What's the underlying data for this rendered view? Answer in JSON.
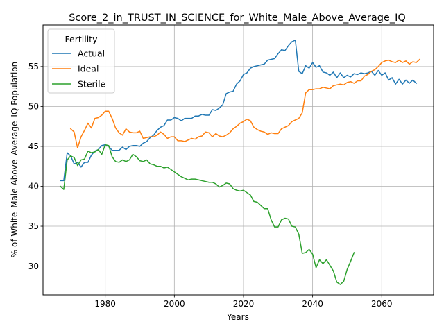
{
  "chart_data": {
    "type": "line",
    "title": "Score_2_in_TRUST_IN_SCIENCE_for_White_Male_Above_Average_IQ",
    "xlabel": "Years",
    "ylabel": "% of White_Male Above_Average_IQ Population",
    "xlim": [
      1962,
      2075
    ],
    "ylim": [
      26.4,
      60.2
    ],
    "xticks": [
      1980,
      2000,
      2020,
      2040,
      2060
    ],
    "yticks": [
      30,
      35,
      40,
      45,
      50,
      55
    ],
    "grid": true,
    "legend": {
      "title": "Fertility",
      "placement": "top-left"
    },
    "series": [
      {
        "name": "Actual",
        "color": "#1f77b4",
        "points": [
          [
            1967,
            40.7
          ],
          [
            1968,
            40.7
          ],
          [
            1969,
            44.2
          ],
          [
            1970,
            43.8
          ],
          [
            1971,
            42.8
          ],
          [
            1972,
            43.0
          ],
          [
            1973,
            42.4
          ],
          [
            1974,
            43.0
          ],
          [
            1975,
            43.0
          ],
          [
            1976,
            43.9
          ],
          [
            1977,
            44.4
          ],
          [
            1978,
            44.6
          ],
          [
            1979,
            45.1
          ],
          [
            1980,
            45.2
          ],
          [
            1981,
            45.0
          ],
          [
            1982,
            44.5
          ],
          [
            1983,
            44.5
          ],
          [
            1984,
            44.5
          ],
          [
            1985,
            44.9
          ],
          [
            1986,
            44.6
          ],
          [
            1987,
            45.0
          ],
          [
            1988,
            45.1
          ],
          [
            1989,
            45.1
          ],
          [
            1990,
            45.0
          ],
          [
            1991,
            45.4
          ],
          [
            1992,
            45.6
          ],
          [
            1993,
            46.1
          ],
          [
            1994,
            46.4
          ],
          [
            1995,
            47.0
          ],
          [
            1996,
            47.4
          ],
          [
            1997,
            47.6
          ],
          [
            1998,
            48.3
          ],
          [
            1999,
            48.3
          ],
          [
            2000,
            48.6
          ],
          [
            2001,
            48.5
          ],
          [
            2002,
            48.2
          ],
          [
            2003,
            48.5
          ],
          [
            2004,
            48.5
          ],
          [
            2005,
            48.5
          ],
          [
            2006,
            48.8
          ],
          [
            2007,
            48.8
          ],
          [
            2008,
            49.0
          ],
          [
            2009,
            48.9
          ],
          [
            2010,
            48.9
          ],
          [
            2011,
            49.6
          ],
          [
            2012,
            49.5
          ],
          [
            2013,
            49.8
          ],
          [
            2014,
            50.2
          ],
          [
            2015,
            51.6
          ],
          [
            2016,
            51.8
          ],
          [
            2017,
            51.9
          ],
          [
            2018,
            52.8
          ],
          [
            2019,
            53.2
          ],
          [
            2020,
            54.0
          ],
          [
            2021,
            54.2
          ],
          [
            2022,
            54.8
          ],
          [
            2023,
            55.0
          ],
          [
            2024,
            55.1
          ],
          [
            2025,
            55.2
          ],
          [
            2026,
            55.3
          ],
          [
            2027,
            55.8
          ],
          [
            2028,
            55.9
          ],
          [
            2029,
            56.0
          ],
          [
            2030,
            56.6
          ],
          [
            2031,
            57.1
          ],
          [
            2032,
            57.0
          ],
          [
            2033,
            57.6
          ],
          [
            2034,
            58.1
          ],
          [
            2035,
            58.3
          ],
          [
            2036,
            54.4
          ],
          [
            2037,
            54.1
          ],
          [
            2038,
            55.1
          ],
          [
            2039,
            54.8
          ],
          [
            2040,
            55.5
          ],
          [
            2041,
            54.9
          ],
          [
            2042,
            55.1
          ],
          [
            2043,
            54.3
          ],
          [
            2044,
            54.2
          ],
          [
            2045,
            53.9
          ],
          [
            2046,
            54.3
          ],
          [
            2047,
            53.6
          ],
          [
            2048,
            54.2
          ],
          [
            2049,
            53.6
          ],
          [
            2050,
            53.9
          ],
          [
            2051,
            53.7
          ],
          [
            2052,
            54.1
          ],
          [
            2053,
            54.0
          ],
          [
            2054,
            54.2
          ],
          [
            2055,
            54.1
          ],
          [
            2056,
            54.2
          ],
          [
            2057,
            54.4
          ],
          [
            2058,
            53.9
          ],
          [
            2059,
            54.5
          ],
          [
            2060,
            53.9
          ],
          [
            2061,
            54.2
          ],
          [
            2062,
            53.3
          ],
          [
            2063,
            53.6
          ],
          [
            2064,
            52.8
          ],
          [
            2065,
            53.4
          ],
          [
            2066,
            52.8
          ],
          [
            2067,
            53.3
          ],
          [
            2068,
            52.9
          ],
          [
            2069,
            53.3
          ],
          [
            2070,
            52.9
          ]
        ]
      },
      {
        "name": "Ideal",
        "color": "#ff7f0e",
        "points": [
          [
            1970,
            47.2
          ],
          [
            1971,
            46.8
          ],
          [
            1972,
            44.8
          ],
          [
            1973,
            46.2
          ],
          [
            1974,
            47.0
          ],
          [
            1975,
            47.9
          ],
          [
            1976,
            47.3
          ],
          [
            1977,
            48.5
          ],
          [
            1978,
            48.6
          ],
          [
            1979,
            48.9
          ],
          [
            1980,
            49.4
          ],
          [
            1981,
            49.4
          ],
          [
            1982,
            48.5
          ],
          [
            1983,
            47.3
          ],
          [
            1984,
            46.7
          ],
          [
            1985,
            46.4
          ],
          [
            1986,
            47.2
          ],
          [
            1987,
            46.8
          ],
          [
            1988,
            46.7
          ],
          [
            1989,
            46.7
          ],
          [
            1990,
            46.9
          ],
          [
            1991,
            46.0
          ],
          [
            1992,
            46.1
          ],
          [
            1993,
            46.2
          ],
          [
            1994,
            46.2
          ],
          [
            1995,
            46.4
          ],
          [
            1996,
            46.8
          ],
          [
            1997,
            46.5
          ],
          [
            1998,
            46.0
          ],
          [
            1999,
            46.2
          ],
          [
            2000,
            46.2
          ],
          [
            2001,
            45.7
          ],
          [
            2002,
            45.7
          ],
          [
            2003,
            45.6
          ],
          [
            2004,
            45.8
          ],
          [
            2005,
            46.0
          ],
          [
            2006,
            45.9
          ],
          [
            2007,
            46.2
          ],
          [
            2008,
            46.3
          ],
          [
            2009,
            46.8
          ],
          [
            2010,
            46.7
          ],
          [
            2011,
            46.2
          ],
          [
            2012,
            46.6
          ],
          [
            2013,
            46.3
          ],
          [
            2014,
            46.2
          ],
          [
            2015,
            46.4
          ],
          [
            2016,
            46.7
          ],
          [
            2017,
            47.2
          ],
          [
            2018,
            47.5
          ],
          [
            2019,
            47.9
          ],
          [
            2020,
            48.1
          ],
          [
            2021,
            48.4
          ],
          [
            2022,
            48.2
          ],
          [
            2023,
            47.4
          ],
          [
            2024,
            47.1
          ],
          [
            2025,
            46.9
          ],
          [
            2026,
            46.8
          ],
          [
            2027,
            46.5
          ],
          [
            2028,
            46.7
          ],
          [
            2029,
            46.6
          ],
          [
            2030,
            46.6
          ],
          [
            2031,
            47.2
          ],
          [
            2032,
            47.4
          ],
          [
            2033,
            47.6
          ],
          [
            2034,
            48.1
          ],
          [
            2035,
            48.3
          ],
          [
            2036,
            48.5
          ],
          [
            2037,
            49.2
          ],
          [
            2038,
            51.7
          ],
          [
            2039,
            52.1
          ],
          [
            2040,
            52.1
          ],
          [
            2041,
            52.2
          ],
          [
            2042,
            52.2
          ],
          [
            2043,
            52.4
          ],
          [
            2044,
            52.3
          ],
          [
            2045,
            52.2
          ],
          [
            2046,
            52.6
          ],
          [
            2047,
            52.7
          ],
          [
            2048,
            52.8
          ],
          [
            2049,
            52.7
          ],
          [
            2050,
            53.0
          ],
          [
            2051,
            53.1
          ],
          [
            2052,
            52.9
          ],
          [
            2053,
            53.2
          ],
          [
            2054,
            53.2
          ],
          [
            2055,
            53.8
          ],
          [
            2056,
            54.0
          ],
          [
            2057,
            54.4
          ],
          [
            2058,
            54.6
          ],
          [
            2059,
            55.0
          ],
          [
            2060,
            55.5
          ],
          [
            2061,
            55.7
          ],
          [
            2062,
            55.8
          ],
          [
            2063,
            55.6
          ],
          [
            2064,
            55.5
          ],
          [
            2065,
            55.8
          ],
          [
            2066,
            55.5
          ],
          [
            2067,
            55.7
          ],
          [
            2068,
            55.3
          ],
          [
            2069,
            55.6
          ],
          [
            2070,
            55.5
          ],
          [
            2071,
            55.9
          ]
        ]
      },
      {
        "name": "Sterile",
        "color": "#2ca02c",
        "points": [
          [
            1967,
            40.0
          ],
          [
            1968,
            39.6
          ],
          [
            1969,
            43.3
          ],
          [
            1970,
            43.8
          ],
          [
            1971,
            43.6
          ],
          [
            1972,
            42.6
          ],
          [
            1973,
            43.3
          ],
          [
            1974,
            43.4
          ],
          [
            1975,
            44.4
          ],
          [
            1976,
            44.2
          ],
          [
            1977,
            44.3
          ],
          [
            1978,
            44.6
          ],
          [
            1979,
            44.0
          ],
          [
            1980,
            45.2
          ],
          [
            1981,
            45.1
          ],
          [
            1982,
            43.7
          ],
          [
            1983,
            43.1
          ],
          [
            1984,
            43.0
          ],
          [
            1985,
            43.3
          ],
          [
            1986,
            43.1
          ],
          [
            1987,
            43.3
          ],
          [
            1988,
            44.0
          ],
          [
            1989,
            43.7
          ],
          [
            1990,
            43.2
          ],
          [
            1991,
            43.1
          ],
          [
            1992,
            43.3
          ],
          [
            1993,
            42.8
          ],
          [
            1994,
            42.7
          ],
          [
            1995,
            42.5
          ],
          [
            1996,
            42.5
          ],
          [
            1997,
            42.3
          ],
          [
            1998,
            42.4
          ],
          [
            1999,
            42.1
          ],
          [
            2000,
            41.8
          ],
          [
            2001,
            41.5
          ],
          [
            2002,
            41.2
          ],
          [
            2003,
            41.0
          ],
          [
            2004,
            40.8
          ],
          [
            2005,
            40.9
          ],
          [
            2006,
            40.9
          ],
          [
            2007,
            40.8
          ],
          [
            2008,
            40.7
          ],
          [
            2009,
            40.6
          ],
          [
            2010,
            40.5
          ],
          [
            2011,
            40.5
          ],
          [
            2012,
            40.3
          ],
          [
            2013,
            39.9
          ],
          [
            2014,
            40.1
          ],
          [
            2015,
            40.4
          ],
          [
            2016,
            40.3
          ],
          [
            2017,
            39.7
          ],
          [
            2018,
            39.5
          ],
          [
            2019,
            39.4
          ],
          [
            2020,
            39.5
          ],
          [
            2021,
            39.2
          ],
          [
            2022,
            38.9
          ],
          [
            2023,
            38.1
          ],
          [
            2024,
            38.0
          ],
          [
            2025,
            37.6
          ],
          [
            2026,
            37.2
          ],
          [
            2027,
            37.2
          ],
          [
            2028,
            35.8
          ],
          [
            2029,
            34.9
          ],
          [
            2030,
            34.9
          ],
          [
            2031,
            35.8
          ],
          [
            2032,
            36.0
          ],
          [
            2033,
            35.9
          ],
          [
            2034,
            35.0
          ],
          [
            2035,
            34.9
          ],
          [
            2036,
            34.0
          ],
          [
            2037,
            31.6
          ],
          [
            2038,
            31.7
          ],
          [
            2039,
            32.1
          ],
          [
            2040,
            31.5
          ],
          [
            2041,
            29.8
          ],
          [
            2042,
            30.8
          ],
          [
            2043,
            30.3
          ],
          [
            2044,
            30.8
          ],
          [
            2045,
            30.1
          ],
          [
            2046,
            29.4
          ],
          [
            2047,
            28.0
          ],
          [
            2048,
            27.7
          ],
          [
            2049,
            28.1
          ],
          [
            2050,
            29.6
          ],
          [
            2051,
            30.6
          ],
          [
            2052,
            31.7
          ]
        ]
      }
    ]
  }
}
